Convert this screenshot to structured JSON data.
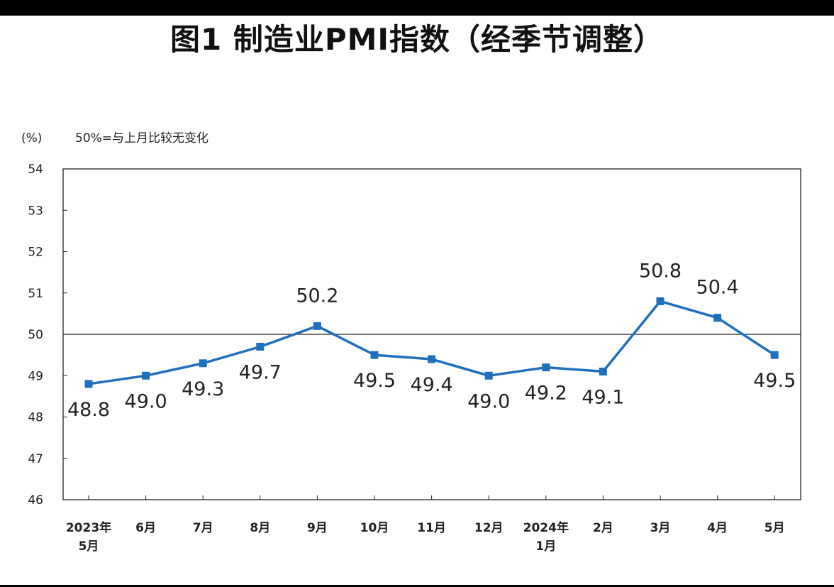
{
  "chart_data": {
    "type": "line",
    "title": "图1  制造业PMI指数（经季节调整）",
    "ylabel": "(%)",
    "annotation": "50%=与上月比较无变化",
    "categories": [
      [
        "2023年",
        "5月"
      ],
      [
        "6月"
      ],
      [
        "7月"
      ],
      [
        "8月"
      ],
      [
        "9月"
      ],
      [
        "10月"
      ],
      [
        "11月"
      ],
      [
        "12月"
      ],
      [
        "2024年",
        "1月"
      ],
      [
        "2月"
      ],
      [
        "3月"
      ],
      [
        "4月"
      ],
      [
        "5月"
      ]
    ],
    "series": [
      {
        "values": [
          48.8,
          49.0,
          49.3,
          49.7,
          50.2,
          49.5,
          49.4,
          49.0,
          49.2,
          49.1,
          50.8,
          50.4,
          49.5
        ],
        "labels": [
          "48.8",
          "49.0",
          "49.3",
          "49.7",
          "50.2",
          "49.5",
          "49.4",
          "49.0",
          "49.2",
          "49.1",
          "50.8",
          "50.4",
          "49.5"
        ],
        "color": "#1f6fbf"
      }
    ],
    "yticks": [
      "46",
      "47",
      "48",
      "49",
      "50",
      "51",
      "52",
      "53",
      "54"
    ],
    "ylim": [
      46,
      54
    ],
    "reference_line": 50,
    "grid": false,
    "legend": "none"
  }
}
